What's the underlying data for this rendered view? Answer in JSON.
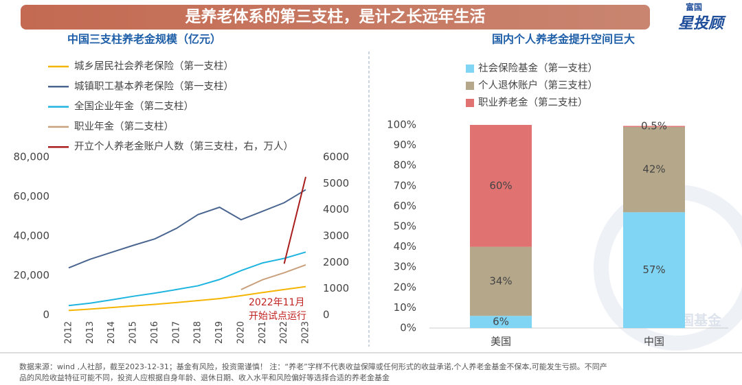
{
  "header": {
    "title": "是养老体系的第三支柱，是计之长远年生活",
    "logo_top": "富国",
    "logo_main": "星投顾",
    "watermark": "富国基金"
  },
  "chart_data": [
    {
      "type": "line",
      "title": "中国三支柱养老金规模（亿元）",
      "categories": [
        "2012",
        "2013",
        "2014",
        "2015",
        "2016",
        "2017",
        "2018",
        "2019",
        "2020",
        "2021",
        "2022",
        "2023"
      ],
      "series": [
        {
          "name": "城乡居民社会养老保险（第一支柱）",
          "color": "#f5b400",
          "values": [
            2300,
            3000,
            3800,
            4600,
            5400,
            6300,
            7300,
            8300,
            9800,
            11400,
            12900,
            14400
          ]
        },
        {
          "name": "城镇职工基本养老保险（第一支柱）",
          "color": "#4a6690",
          "values": [
            23900,
            28300,
            31800,
            35300,
            38600,
            43900,
            50900,
            54600,
            48300,
            52600,
            56900,
            63500
          ]
        },
        {
          "name": "全国企业年金（第二支柱）",
          "color": "#1eb4e0",
          "values": [
            4800,
            6000,
            7700,
            9500,
            11100,
            12900,
            14800,
            18000,
            22500,
            26400,
            28700,
            31900
          ]
        },
        {
          "name": "职业年金（第二支柱）",
          "color": "#c9a07c",
          "values": [
            null,
            null,
            null,
            null,
            null,
            null,
            null,
            null,
            12900,
            17900,
            21400,
            25400
          ]
        },
        {
          "name": "开立个人养老金账户人数（第三支柱，右，万人）",
          "color": "#a81c1c",
          "axis": "y2",
          "values": [
            null,
            null,
            null,
            null,
            null,
            null,
            null,
            null,
            null,
            null,
            1950,
            5250
          ]
        }
      ],
      "ylim": [
        0,
        80000
      ],
      "yticks": [
        0,
        {
          "value": 20000,
          "label": "20,000"
        },
        {
          "value": 40000,
          "label": "40,000"
        },
        {
          "value": 60000,
          "label": "60,000"
        },
        {
          "value": 80000,
          "label": "80,000"
        }
      ],
      "y2lim": [
        0,
        6000
      ],
      "y2ticks": [
        0,
        1000,
        2000,
        3000,
        4000,
        5000,
        6000
      ],
      "annotation": [
        "2022年11月",
        "开始试点运行"
      ]
    },
    {
      "type": "stacked_bar",
      "title": "国内个人养老金提升空间巨大",
      "categories": [
        "美国",
        "中国"
      ],
      "series": [
        {
          "name": "社会保险基金（第一支柱）",
          "color": "#80d4f4",
          "values": [
            6,
            57
          ],
          "value_labels": [
            "6%",
            "57%"
          ]
        },
        {
          "name": "个人退休账户（第三支柱）",
          "color": "#b4a78a",
          "values": [
            34,
            42
          ],
          "value_labels": [
            "34%",
            "42%"
          ]
        },
        {
          "name": "职业养老金（第二支柱）",
          "color": "#e07272",
          "values": [
            60,
            0.5
          ],
          "value_labels": [
            "60%",
            "0.5%"
          ]
        }
      ],
      "ylim": [
        0,
        100
      ],
      "yticks": [
        {
          "value": 0,
          "label": "0%"
        },
        {
          "value": 10,
          "label": "10%"
        },
        {
          "value": 20,
          "label": "20%"
        },
        {
          "value": 30,
          "label": "30%"
        },
        {
          "value": 40,
          "label": "40%"
        },
        {
          "value": 50,
          "label": "50%"
        },
        {
          "value": 60,
          "label": "60%"
        },
        {
          "value": 70,
          "label": "70%"
        },
        {
          "value": 80,
          "label": "80%"
        },
        {
          "value": 90,
          "label": "90%"
        },
        {
          "value": 100,
          "label": "100%"
        }
      ]
    }
  ],
  "footnote": [
    "数据来源：wind ,人社部，截至2023-12-31；基金有风险，投资需谨慎！ 注：“养老”字样不代表收益保障或任何形式的收益承诺,个人养老金基金不保本,可能发生亏损。不同产",
    "品的风险收益特征可能不同，投资人应根据自身年龄、退休日期、收入水平和风险偏好等选择合适的养老金基金"
  ]
}
